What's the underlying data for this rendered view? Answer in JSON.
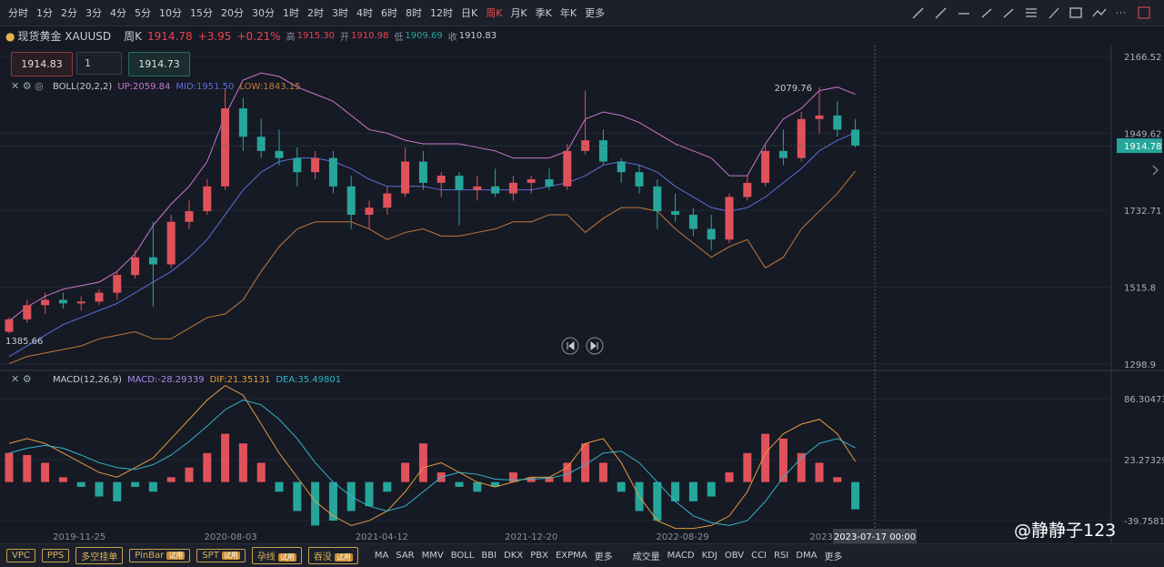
{
  "toolbar": {
    "periods": [
      "分时",
      "1分",
      "2分",
      "3分",
      "4分",
      "5分",
      "10分",
      "15分",
      "20分",
      "30分",
      "1时",
      "2时",
      "3时",
      "4时",
      "6时",
      "8时",
      "12时",
      "日K",
      "周K",
      "月K",
      "季K",
      "年K"
    ],
    "active": "周K",
    "more": "更多"
  },
  "header": {
    "symbol": "现货黄金 XAUUSD",
    "period": "周K",
    "last": "1914.78",
    "change": "+3.95",
    "change_pct": "+0.21%",
    "high_label": "高",
    "high": "1915.30",
    "open_label": "开",
    "open": "1910.98",
    "low_label": "低",
    "low": "1909.69",
    "close_label": "收",
    "close": "1910.83"
  },
  "trade": {
    "sell": "1914.83",
    "qty": "1",
    "buy": "1914.73"
  },
  "chart_data": [
    {
      "type": "candlestick",
      "indicator": "BOLL(20,2,2)",
      "legend_labels": [
        "UP:2059.84",
        "MID:1951.50",
        "LOW:1843.15"
      ],
      "up_color": "#e0525b",
      "down_color": "#26a69a",
      "ylim": [
        1298.9,
        2166.52
      ],
      "yticks": [
        2166.52,
        1949.62,
        1732.71,
        1515.8,
        1298.9
      ],
      "last_price": 1914.78,
      "max_label": "2079.76",
      "min_label": "1385.66",
      "candles": [
        [
          1390,
          1430,
          1385.66,
          1425
        ],
        [
          1425,
          1480,
          1415,
          1465
        ],
        [
          1465,
          1500,
          1440,
          1480
        ],
        [
          1480,
          1500,
          1455,
          1470
        ],
        [
          1470,
          1490,
          1450,
          1475
        ],
        [
          1475,
          1510,
          1465,
          1500
        ],
        [
          1500,
          1560,
          1480,
          1550
        ],
        [
          1550,
          1620,
          1540,
          1600
        ],
        [
          1600,
          1700,
          1460,
          1580
        ],
        [
          1580,
          1720,
          1570,
          1700
        ],
        [
          1700,
          1760,
          1680,
          1730
        ],
        [
          1730,
          1820,
          1720,
          1800
        ],
        [
          1800,
          2075,
          1790,
          2020
        ],
        [
          2020,
          2050,
          1900,
          1940
        ],
        [
          1940,
          1990,
          1880,
          1900
        ],
        [
          1900,
          1960,
          1860,
          1880
        ],
        [
          1880,
          1910,
          1800,
          1840
        ],
        [
          1840,
          1900,
          1820,
          1880
        ],
        [
          1880,
          1900,
          1780,
          1800
        ],
        [
          1800,
          1830,
          1680,
          1720
        ],
        [
          1720,
          1760,
          1680,
          1740
        ],
        [
          1740,
          1800,
          1720,
          1780
        ],
        [
          1780,
          1910,
          1770,
          1870
        ],
        [
          1870,
          1900,
          1790,
          1810
        ],
        [
          1810,
          1840,
          1770,
          1830
        ],
        [
          1830,
          1840,
          1690,
          1790
        ],
        [
          1790,
          1830,
          1760,
          1800
        ],
        [
          1800,
          1850,
          1770,
          1780
        ],
        [
          1780,
          1830,
          1760,
          1810
        ],
        [
          1810,
          1830,
          1780,
          1820
        ],
        [
          1820,
          1850,
          1790,
          1800
        ],
        [
          1800,
          1920,
          1790,
          1900
        ],
        [
          1900,
          2070,
          1890,
          1930
        ],
        [
          1930,
          1960,
          1860,
          1870
        ],
        [
          1870,
          1880,
          1810,
          1840
        ],
        [
          1840,
          1860,
          1780,
          1800
        ],
        [
          1800,
          1820,
          1680,
          1730
        ],
        [
          1730,
          1780,
          1700,
          1720
        ],
        [
          1720,
          1740,
          1660,
          1680
        ],
        [
          1680,
          1720,
          1620,
          1650
        ],
        [
          1650,
          1780,
          1640,
          1770
        ],
        [
          1770,
          1830,
          1760,
          1810
        ],
        [
          1810,
          1920,
          1800,
          1900
        ],
        [
          1900,
          1960,
          1860,
          1880
        ],
        [
          1880,
          2010,
          1870,
          1990
        ],
        [
          1990,
          2079.76,
          1950,
          2000
        ],
        [
          2000,
          2040,
          1940,
          1960
        ],
        [
          1960,
          1990,
          1910,
          1914.78
        ]
      ],
      "series": [
        {
          "name": "UP",
          "color": "#c678c8",
          "values": [
            1420,
            1460,
            1490,
            1510,
            1520,
            1530,
            1560,
            1610,
            1690,
            1750,
            1800,
            1870,
            2000,
            2100,
            2120,
            2110,
            2080,
            2060,
            2040,
            2000,
            1960,
            1950,
            1930,
            1920,
            1920,
            1920,
            1910,
            1900,
            1880,
            1880,
            1880,
            1900,
            1990,
            2010,
            2000,
            1980,
            1950,
            1920,
            1900,
            1880,
            1830,
            1830,
            1920,
            1990,
            2020,
            2070,
            2080,
            2059.84
          ]
        },
        {
          "name": "MID",
          "color": "#5b6fd6",
          "values": [
            1320,
            1350,
            1380,
            1410,
            1430,
            1450,
            1470,
            1500,
            1530,
            1560,
            1600,
            1650,
            1720,
            1790,
            1840,
            1870,
            1880,
            1880,
            1870,
            1850,
            1820,
            1800,
            1800,
            1800,
            1790,
            1790,
            1790,
            1790,
            1790,
            1790,
            1800,
            1810,
            1830,
            1860,
            1870,
            1860,
            1840,
            1800,
            1770,
            1740,
            1730,
            1740,
            1770,
            1810,
            1850,
            1900,
            1930,
            1951.5
          ]
        },
        {
          "name": "LOW",
          "color": "#c07a3a",
          "values": [
            1300,
            1320,
            1330,
            1340,
            1350,
            1370,
            1380,
            1390,
            1370,
            1370,
            1400,
            1430,
            1440,
            1480,
            1560,
            1630,
            1680,
            1700,
            1700,
            1700,
            1680,
            1650,
            1670,
            1680,
            1660,
            1660,
            1670,
            1680,
            1700,
            1700,
            1720,
            1720,
            1670,
            1710,
            1740,
            1740,
            1730,
            1680,
            1640,
            1600,
            1630,
            1650,
            1570,
            1600,
            1680,
            1730,
            1780,
            1843.15
          ]
        }
      ]
    },
    {
      "type": "macd",
      "indicator": "MACD(12,26,9)",
      "legend_labels": [
        "MACD:-28.29339",
        "DIF:21.35131",
        "DEA:35.49801"
      ],
      "up_color": "#e0525b",
      "down_color": "#26a69a",
      "ylim": [
        -55,
        110
      ],
      "yticks": [
        86.30473,
        23.27329,
        -39.75815
      ],
      "histogram": [
        30,
        28,
        20,
        5,
        -5,
        -15,
        -20,
        -5,
        -10,
        5,
        15,
        30,
        50,
        40,
        20,
        -10,
        -30,
        -45,
        -40,
        -30,
        -25,
        -10,
        20,
        40,
        10,
        -5,
        -10,
        -5,
        10,
        5,
        5,
        20,
        40,
        20,
        -10,
        -30,
        -40,
        -20,
        -20,
        -15,
        10,
        30,
        50,
        45,
        30,
        20,
        5,
        -28.29339
      ],
      "series": [
        {
          "name": "DIF",
          "color": "#e49b3c",
          "values": [
            40,
            45,
            40,
            30,
            20,
            10,
            5,
            15,
            25,
            45,
            65,
            85,
            100,
            90,
            60,
            30,
            5,
            -20,
            -35,
            -45,
            -40,
            -30,
            -10,
            15,
            20,
            10,
            0,
            -5,
            0,
            5,
            5,
            15,
            40,
            45,
            20,
            -15,
            -40,
            -48,
            -48,
            -45,
            -35,
            -10,
            30,
            50,
            60,
            65,
            50,
            21.35131
          ]
        },
        {
          "name": "DEA",
          "color": "#36b3c9",
          "values": [
            30,
            35,
            38,
            35,
            28,
            20,
            15,
            13,
            18,
            28,
            42,
            58,
            75,
            85,
            80,
            65,
            45,
            20,
            0,
            -15,
            -25,
            -30,
            -25,
            -10,
            5,
            10,
            8,
            3,
            2,
            3,
            4,
            8,
            18,
            30,
            32,
            20,
            0,
            -20,
            -35,
            -42,
            -45,
            -40,
            -20,
            5,
            25,
            40,
            45,
            35.49801
          ]
        }
      ],
      "xticks": [
        {
          "value": 3.9,
          "label": "2019-11-25"
        },
        {
          "value": 12.3,
          "label": "2020-08-03"
        },
        {
          "value": 20.7,
          "label": "2021-04-12"
        },
        {
          "value": 29,
          "label": "2021-12-20"
        },
        {
          "value": 37.4,
          "label": "2022-08-29"
        },
        {
          "value": 45.2,
          "label": "2023-"
        }
      ],
      "crosshair_label": "2023-07-17 00:00"
    }
  ],
  "bottom": {
    "tools": [
      {
        "label": "VPC"
      },
      {
        "label": "PPS"
      },
      {
        "label": "多空挂单"
      },
      {
        "label": "PinBar",
        "badge": "试用"
      },
      {
        "label": "SPT",
        "badge": "试用"
      },
      {
        "label": "孕线",
        "badge": "试用"
      },
      {
        "label": "吞没",
        "badge": "试用"
      }
    ],
    "indicators": [
      "MA",
      "SAR",
      "MMV",
      "BOLL",
      "BBI",
      "DKX",
      "PBX",
      "EXPMA"
    ],
    "more1": "更多",
    "sub_indicators": [
      "成交量",
      "MACD",
      "KDJ",
      "OBV",
      "CCI",
      "RSI",
      "DMA"
    ],
    "more2": "更多"
  },
  "watermark": "@静静子123"
}
